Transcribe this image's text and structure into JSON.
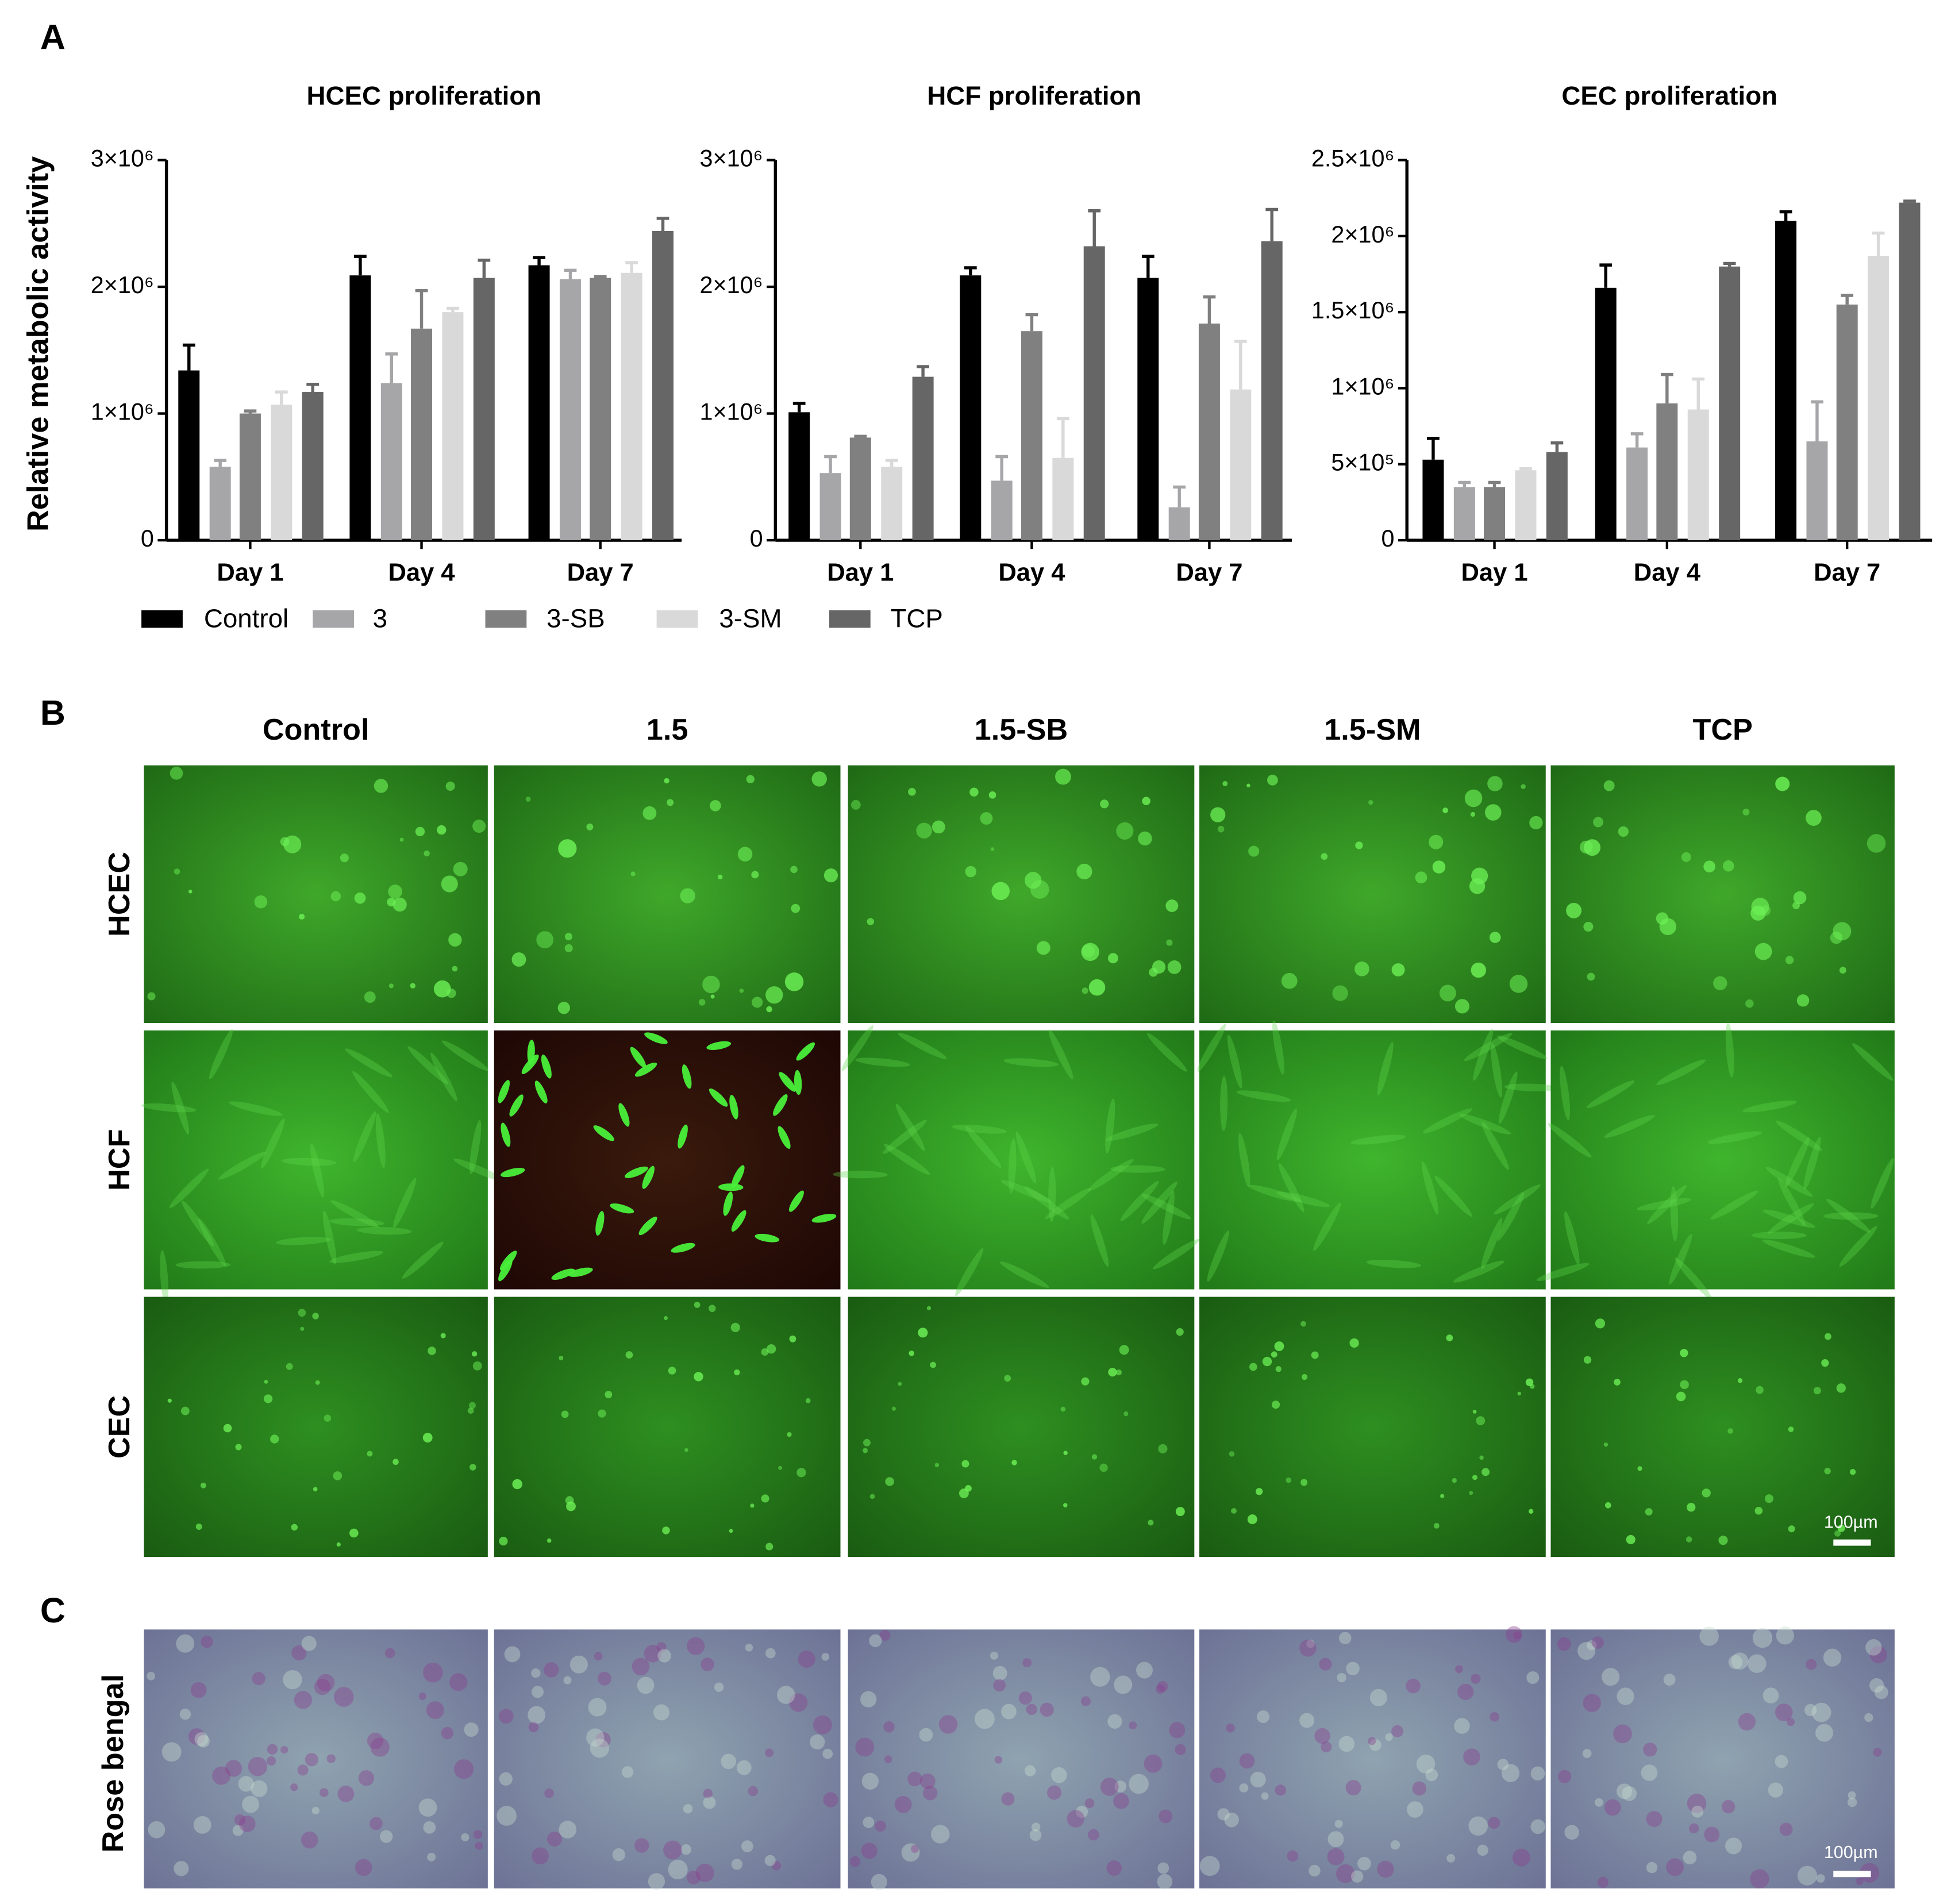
{
  "chart_data": [
    {
      "type": "bar",
      "title": "HCEC proliferation",
      "y_label": "Relative metabolic activity",
      "categories": [
        "Day 1",
        "Day 4",
        "Day 7"
      ],
      "ylim": [
        0,
        3000000
      ],
      "yticks": [
        0,
        {
          "value": 1000000,
          "label": "1×10⁶"
        },
        {
          "value": 2000000,
          "label": "2×10⁶"
        },
        {
          "value": 3000000,
          "label": "3×10⁶"
        }
      ],
      "series": [
        {
          "name": "Control",
          "color": "#000000",
          "values": [
            1340000,
            2090000,
            2170000
          ],
          "errors": [
            200000,
            150000,
            60000
          ]
        },
        {
          "name": "3",
          "color": "#a6a6a8",
          "values": [
            580000,
            1240000,
            2060000
          ],
          "errors": [
            50000,
            230000,
            70000
          ]
        },
        {
          "name": "3-SB",
          "color": "#808080",
          "values": [
            1000000,
            1670000,
            2070000
          ],
          "errors": [
            20000,
            300000,
            10000
          ]
        },
        {
          "name": "3-SM",
          "color": "#d9d9d9",
          "values": [
            1070000,
            1800000,
            2110000
          ],
          "errors": [
            100000,
            30000,
            80000
          ]
        },
        {
          "name": "TCP",
          "color": "#666666",
          "values": [
            1170000,
            2070000,
            2440000
          ],
          "errors": [
            60000,
            140000,
            100000
          ]
        }
      ]
    },
    {
      "type": "bar",
      "title": "HCF proliferation",
      "categories": [
        "Day 1",
        "Day 4",
        "Day 7"
      ],
      "ylim": [
        0,
        3000000
      ],
      "yticks": [
        0,
        {
          "value": 1000000,
          "label": "1×10⁶"
        },
        {
          "value": 2000000,
          "label": "2×10⁶"
        },
        {
          "value": 3000000,
          "label": "3×10⁶"
        }
      ],
      "series": [
        {
          "color": "#000000",
          "values": [
            1010000,
            2090000,
            2070000
          ],
          "errors": [
            70000,
            60000,
            170000
          ]
        },
        {
          "color": "#a6a6a8",
          "values": [
            530000,
            470000,
            260000
          ],
          "errors": [
            130000,
            190000,
            160000
          ]
        },
        {
          "color": "#808080",
          "values": [
            810000,
            1650000,
            1710000
          ],
          "errors": [
            10000,
            130000,
            210000
          ]
        },
        {
          "color": "#d9d9d9",
          "values": [
            580000,
            650000,
            1190000
          ],
          "errors": [
            50000,
            310000,
            380000
          ]
        },
        {
          "color": "#666666",
          "values": [
            1290000,
            2320000,
            2360000
          ],
          "errors": [
            80000,
            280000,
            250000
          ]
        }
      ]
    },
    {
      "type": "bar",
      "title": "CEC proliferation",
      "categories": [
        "Day 1",
        "Day 4",
        "Day 7"
      ],
      "ylim": [
        0,
        2500000
      ],
      "yticks": [
        0,
        {
          "value": 500000,
          "label": "5×10⁵"
        },
        {
          "value": 1000000,
          "label": "1×10⁶"
        },
        {
          "value": 1500000,
          "label": "1.5×10⁶"
        },
        {
          "value": 2000000,
          "label": "2×10⁶"
        },
        {
          "value": 2500000,
          "label": "2.5×10⁶"
        }
      ],
      "series": [
        {
          "color": "#000000",
          "values": [
            530000,
            1660000,
            2100000
          ],
          "errors": [
            140000,
            150000,
            60000
          ]
        },
        {
          "color": "#a6a6a8",
          "values": [
            350000,
            610000,
            650000
          ],
          "errors": [
            30000,
            90000,
            260000
          ]
        },
        {
          "color": "#808080",
          "values": [
            350000,
            900000,
            1550000
          ],
          "errors": [
            30000,
            190000,
            60000
          ]
        },
        {
          "color": "#d9d9d9",
          "values": [
            460000,
            860000,
            1870000
          ],
          "errors": [
            10000,
            200000,
            150000
          ]
        },
        {
          "color": "#666666",
          "values": [
            580000,
            1800000,
            2220000
          ],
          "errors": [
            60000,
            20000,
            10000
          ]
        }
      ]
    }
  ],
  "panels": {
    "a": "A",
    "b": "B",
    "c": "C",
    "columns": [
      "Control",
      "1.5",
      "1.5-SB",
      "1.5-SM",
      "TCP"
    ],
    "rows": [
      "HCEC",
      "HCF",
      "CEC"
    ],
    "stain_row": "Rose bengal",
    "scale_bar_b": "100µm",
    "scale_bar_c": "100µm"
  }
}
